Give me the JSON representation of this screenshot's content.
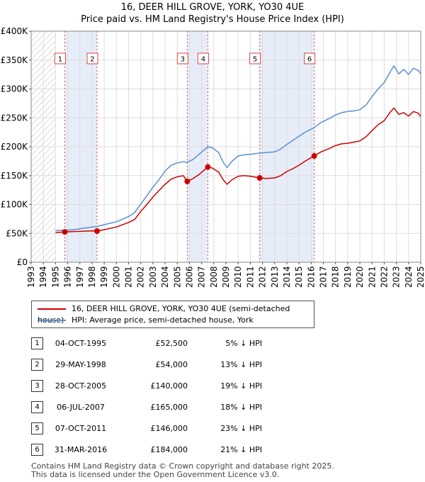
{
  "title": "16, DEER HILL GROVE, YORK, YO30 4UE",
  "subtitle": "Price paid vs. HM Land Registry's House Price Index (HPI)",
  "chart_data": {
    "type": "line",
    "x_range": [
      1993,
      2025
    ],
    "ylim": [
      0,
      400000
    ],
    "y_ticks": [
      0,
      50000,
      100000,
      150000,
      200000,
      250000,
      300000,
      350000,
      400000
    ],
    "y_tick_labels": [
      "£0",
      "£50K",
      "£100K",
      "£150K",
      "£200K",
      "£250K",
      "£300K",
      "£350K",
      "£400K"
    ],
    "x_ticks": [
      1993,
      1994,
      1995,
      1996,
      1997,
      1998,
      1999,
      2000,
      2001,
      2002,
      2003,
      2004,
      2005,
      2006,
      2007,
      2008,
      2009,
      2010,
      2011,
      2012,
      2013,
      2014,
      2015,
      2016,
      2017,
      2018,
      2019,
      2020,
      2021,
      2022,
      2023,
      2024,
      2025
    ],
    "x_tick_labels": [
      "1993",
      "1994",
      "1995",
      "1996",
      "1997",
      "1998",
      "1999",
      "2000",
      "2001",
      "2002",
      "2003",
      "2004",
      "2005",
      "2006",
      "2007",
      "2008",
      "2009",
      "2010",
      "2011",
      "2012",
      "2013",
      "2014",
      "2015",
      "2016",
      "2017",
      "2018",
      "2019",
      "2020",
      "2021",
      "2022",
      "2023",
      "2024",
      "2025"
    ],
    "hatched_before": 1995.0,
    "grid": true,
    "series": [
      {
        "name": "16, DEER HILL GROVE, YORK, YO30 4UE (semi-detached house)",
        "color": "#cc0000",
        "points": [
          [
            1995.0,
            51500
          ],
          [
            1995.75,
            52500
          ],
          [
            1996.5,
            53200
          ],
          [
            1997.2,
            53600
          ],
          [
            1998.0,
            54500
          ],
          [
            1998.41,
            54000
          ],
          [
            1999.0,
            56500
          ],
          [
            2000.0,
            61000
          ],
          [
            2001.0,
            69000
          ],
          [
            2001.5,
            74000
          ],
          [
            2002.0,
            88000
          ],
          [
            2002.5,
            100000
          ],
          [
            2003.0,
            113000
          ],
          [
            2003.5,
            124000
          ],
          [
            2004.0,
            135000
          ],
          [
            2004.5,
            144000
          ],
          [
            2005.0,
            148000
          ],
          [
            2005.5,
            150000
          ],
          [
            2005.82,
            140000
          ],
          [
            2006.3,
            145000
          ],
          [
            2006.8,
            152000
          ],
          [
            2007.51,
            165000
          ],
          [
            2007.9,
            163000
          ],
          [
            2008.4,
            156000
          ],
          [
            2008.8,
            142000
          ],
          [
            2009.1,
            135000
          ],
          [
            2009.5,
            143000
          ],
          [
            2010.0,
            149000
          ],
          [
            2010.5,
            150000
          ],
          [
            2011.0,
            149000
          ],
          [
            2011.77,
            146000
          ],
          [
            2012.3,
            145000
          ],
          [
            2013.0,
            146000
          ],
          [
            2013.5,
            150000
          ],
          [
            2014.0,
            157000
          ],
          [
            2014.5,
            162000
          ],
          [
            2015.0,
            168000
          ],
          [
            2015.5,
            175000
          ],
          [
            2016.25,
            184000
          ],
          [
            2016.8,
            191000
          ],
          [
            2017.5,
            197000
          ],
          [
            2018.0,
            202000
          ],
          [
            2018.5,
            205000
          ],
          [
            2019.0,
            206000
          ],
          [
            2019.5,
            208000
          ],
          [
            2020.0,
            210000
          ],
          [
            2020.5,
            217000
          ],
          [
            2021.0,
            228000
          ],
          [
            2021.5,
            238000
          ],
          [
            2022.0,
            245000
          ],
          [
            2022.5,
            260000
          ],
          [
            2022.8,
            267000
          ],
          [
            2023.2,
            256000
          ],
          [
            2023.6,
            259000
          ],
          [
            2024.0,
            253000
          ],
          [
            2024.4,
            261000
          ],
          [
            2024.8,
            258000
          ],
          [
            2025.0,
            252000
          ]
        ]
      },
      {
        "name": "HPI: Average price, semi-detached house, York",
        "color": "#5b8fd0",
        "points": [
          [
            1995.0,
            55000
          ],
          [
            1995.75,
            55500
          ],
          [
            1996.5,
            56500
          ],
          [
            1997.2,
            58500
          ],
          [
            1998.0,
            61000
          ],
          [
            1998.41,
            62000
          ],
          [
            1999.0,
            65000
          ],
          [
            2000.0,
            70000
          ],
          [
            2001.0,
            79000
          ],
          [
            2001.5,
            86000
          ],
          [
            2002.0,
            101000
          ],
          [
            2002.5,
            115000
          ],
          [
            2003.0,
            130000
          ],
          [
            2003.5,
            143000
          ],
          [
            2004.0,
            158000
          ],
          [
            2004.5,
            168000
          ],
          [
            2005.0,
            172000
          ],
          [
            2005.5,
            174000
          ],
          [
            2005.82,
            173000
          ],
          [
            2006.3,
            178000
          ],
          [
            2006.8,
            187000
          ],
          [
            2007.51,
            200000
          ],
          [
            2007.9,
            198000
          ],
          [
            2008.4,
            190000
          ],
          [
            2008.8,
            172000
          ],
          [
            2009.1,
            164000
          ],
          [
            2009.5,
            175000
          ],
          [
            2010.0,
            184000
          ],
          [
            2010.5,
            186000
          ],
          [
            2011.0,
            187000
          ],
          [
            2011.77,
            189000
          ],
          [
            2012.3,
            190000
          ],
          [
            2013.0,
            191000
          ],
          [
            2013.5,
            196000
          ],
          [
            2014.0,
            204000
          ],
          [
            2014.5,
            211000
          ],
          [
            2015.0,
            218000
          ],
          [
            2015.5,
            225000
          ],
          [
            2016.25,
            233000
          ],
          [
            2016.8,
            242000
          ],
          [
            2017.5,
            249000
          ],
          [
            2018.0,
            255000
          ],
          [
            2018.5,
            259000
          ],
          [
            2019.0,
            261000
          ],
          [
            2019.5,
            262000
          ],
          [
            2020.0,
            264000
          ],
          [
            2020.5,
            272000
          ],
          [
            2021.0,
            287000
          ],
          [
            2021.5,
            300000
          ],
          [
            2022.0,
            311000
          ],
          [
            2022.5,
            330000
          ],
          [
            2022.8,
            340000
          ],
          [
            2023.2,
            326000
          ],
          [
            2023.6,
            334000
          ],
          [
            2024.0,
            325000
          ],
          [
            2024.4,
            336000
          ],
          [
            2024.8,
            332000
          ],
          [
            2025.0,
            326000
          ]
        ]
      }
    ],
    "sales": [
      {
        "label": "1",
        "x": 1995.76,
        "y": 52500
      },
      {
        "label": "2",
        "x": 1998.41,
        "y": 54000
      },
      {
        "label": "3",
        "x": 2005.82,
        "y": 140000
      },
      {
        "label": "4",
        "x": 2007.51,
        "y": 165000
      },
      {
        "label": "5",
        "x": 2011.77,
        "y": 146000
      },
      {
        "label": "6",
        "x": 2016.25,
        "y": 184000
      }
    ],
    "shaded_spans": [
      [
        1995.76,
        1998.41
      ],
      [
        2005.82,
        2007.51
      ],
      [
        2011.77,
        2016.25
      ]
    ],
    "marker_color": "#cc0000"
  },
  "legend": {
    "property_label": "16, DEER HILL GROVE, YORK, YO30 4UE (semi-detached house)",
    "hpi_label": "HPI: Average price, semi-detached house, York",
    "property_color": "#cc0000",
    "hpi_color": "#5b8fd0"
  },
  "transactions": [
    {
      "n": "1",
      "date": "04-OCT-1995",
      "price": "£52,500",
      "hpi": "5% ↓ HPI"
    },
    {
      "n": "2",
      "date": "29-MAY-1998",
      "price": "£54,000",
      "hpi": "13% ↓ HPI"
    },
    {
      "n": "3",
      "date": "28-OCT-2005",
      "price": "£140,000",
      "hpi": "19% ↓ HPI"
    },
    {
      "n": "4",
      "date": "06-JUL-2007",
      "price": "£165,000",
      "hpi": "18% ↓ HPI"
    },
    {
      "n": "5",
      "date": "07-OCT-2011",
      "price": "£146,000",
      "hpi": "23% ↓ HPI"
    },
    {
      "n": "6",
      "date": "31-MAR-2016",
      "price": "£184,000",
      "hpi": "21% ↓ HPI"
    }
  ],
  "footer": {
    "line1": "Contains HM Land Registry data © Crown copyright and database right 2025.",
    "line2": "This data is licensed under the Open Government Licence v3.0."
  }
}
